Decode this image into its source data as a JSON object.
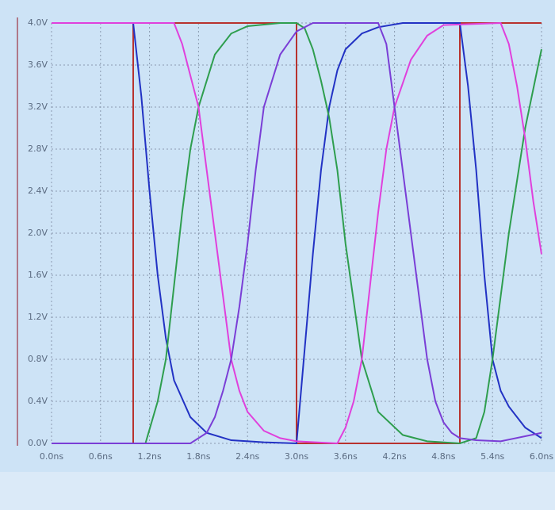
{
  "chart_data": {
    "type": "line",
    "xlim": [
      0,
      6
    ],
    "ylim": [
      0,
      4
    ],
    "xticks": [
      {
        "value": 0,
        "label": "0.0ns"
      },
      {
        "value": 0.6,
        "label": "0.6ns"
      },
      {
        "value": 1.2,
        "label": "1.2ns"
      },
      {
        "value": 1.8,
        "label": "1.8ns"
      },
      {
        "value": 2.4,
        "label": "2.4ns"
      },
      {
        "value": 3.0,
        "label": "3.0ns"
      },
      {
        "value": 3.6,
        "label": "3.6ns"
      },
      {
        "value": 4.2,
        "label": "4.2ns"
      },
      {
        "value": 4.8,
        "label": "4.8ns"
      },
      {
        "value": 5.4,
        "label": "5.4ns"
      },
      {
        "value": 6.0,
        "label": "6.0ns"
      }
    ],
    "yticks": [
      {
        "value": 0,
        "label": "0.0V"
      },
      {
        "value": 0.4,
        "label": "0.4V"
      },
      {
        "value": 0.8,
        "label": "0.8V"
      },
      {
        "value": 1.2,
        "label": "1.2V"
      },
      {
        "value": 1.6,
        "label": "1.6V"
      },
      {
        "value": 2.0,
        "label": "2.0V"
      },
      {
        "value": 2.4,
        "label": "2.4V"
      },
      {
        "value": 2.8,
        "label": "2.8V"
      },
      {
        "value": 3.2,
        "label": "3.2V"
      },
      {
        "value": 3.6,
        "label": "3.6V"
      },
      {
        "value": 4.0,
        "label": "4.0V"
      }
    ],
    "grid": true,
    "series": [
      {
        "color": "#b8322e",
        "x": [
          0,
          1,
          1,
          3,
          3,
          5,
          5,
          6
        ],
        "values": [
          0,
          0,
          4,
          4,
          0,
          0,
          4,
          4
        ]
      },
      {
        "color": "#2232c4",
        "x": [
          0,
          1.0,
          1.1,
          1.2,
          1.3,
          1.4,
          1.5,
          1.7,
          1.9,
          2.2,
          2.6,
          3.0,
          3.1,
          3.2,
          3.3,
          3.4,
          3.5,
          3.6,
          3.8,
          4.0,
          4.3,
          5.0,
          5.1,
          5.2,
          5.3,
          5.4,
          5.5,
          5.6,
          5.8,
          6.0
        ],
        "values": [
          4,
          4,
          3.3,
          2.4,
          1.6,
          1.0,
          0.6,
          0.25,
          0.1,
          0.03,
          0.01,
          0,
          0.9,
          1.8,
          2.6,
          3.2,
          3.55,
          3.75,
          3.9,
          3.96,
          4,
          4,
          3.4,
          2.6,
          1.6,
          0.8,
          0.5,
          0.35,
          0.15,
          0.05
        ]
      },
      {
        "color": "#2e9e4e",
        "x": [
          0,
          1.15,
          1.3,
          1.4,
          1.5,
          1.6,
          1.7,
          1.8,
          2.0,
          2.2,
          2.4,
          2.8,
          3.0,
          3.1,
          3.2,
          3.3,
          3.4,
          3.5,
          3.6,
          3.8,
          4.0,
          4.3,
          4.6,
          5.0,
          5.2,
          5.3,
          5.4,
          5.5,
          5.6,
          5.8,
          6.0
        ],
        "values": [
          0,
          0,
          0.4,
          0.8,
          1.5,
          2.2,
          2.8,
          3.2,
          3.7,
          3.9,
          3.97,
          4,
          4,
          3.95,
          3.75,
          3.45,
          3.1,
          2.6,
          1.9,
          0.8,
          0.3,
          0.08,
          0.02,
          0,
          0.05,
          0.3,
          0.8,
          1.4,
          2.0,
          3.0,
          3.75
        ]
      },
      {
        "color": "#e040dc",
        "x": [
          0,
          1.5,
          1.6,
          1.7,
          1.8,
          1.9,
          2.0,
          2.1,
          2.2,
          2.3,
          2.4,
          2.6,
          2.8,
          3.0,
          3.5,
          3.6,
          3.7,
          3.8,
          3.9,
          4.0,
          4.1,
          4.2,
          4.4,
          4.6,
          4.8,
          5.5,
          5.6,
          5.7,
          5.8,
          5.9,
          6.0
        ],
        "values": [
          4,
          4,
          3.8,
          3.5,
          3.2,
          2.6,
          2.0,
          1.4,
          0.8,
          0.5,
          0.3,
          0.12,
          0.05,
          0.02,
          0,
          0.15,
          0.4,
          0.8,
          1.5,
          2.2,
          2.8,
          3.2,
          3.65,
          3.88,
          3.98,
          4,
          3.8,
          3.4,
          2.9,
          2.3,
          1.8
        ]
      },
      {
        "color": "#7a3ed6",
        "x": [
          0,
          1.7,
          1.9,
          2.0,
          2.1,
          2.2,
          2.3,
          2.4,
          2.5,
          2.6,
          2.8,
          3.0,
          3.2,
          4.0,
          4.1,
          4.2,
          4.3,
          4.4,
          4.5,
          4.6,
          4.7,
          4.8,
          4.9,
          5.0,
          5.2,
          5.5,
          6.0
        ],
        "values": [
          0,
          0,
          0.1,
          0.25,
          0.5,
          0.8,
          1.3,
          1.9,
          2.6,
          3.2,
          3.7,
          3.92,
          4,
          4,
          3.8,
          3.2,
          2.6,
          2.0,
          1.4,
          0.8,
          0.4,
          0.2,
          0.1,
          0.05,
          0.03,
          0.02,
          0.1
        ]
      }
    ]
  }
}
